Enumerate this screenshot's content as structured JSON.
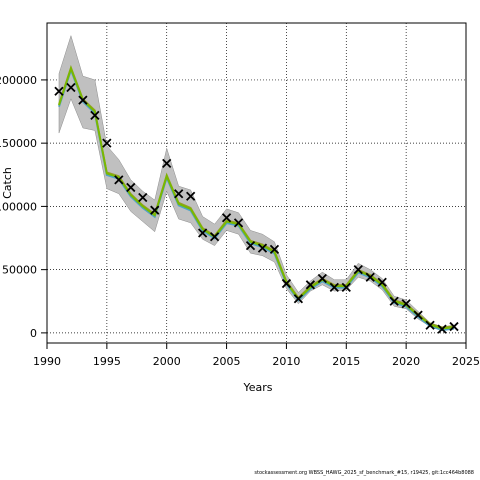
{
  "chart_data": {
    "type": "line",
    "xlabel": "Years",
    "ylabel": "Catch",
    "xlim": [
      1990,
      2025
    ],
    "ylim": [
      -8000,
      245000
    ],
    "x_ticks": [
      1990,
      1995,
      2000,
      2005,
      2010,
      2015,
      2020,
      2025
    ],
    "y_ticks": [
      0,
      50000,
      100000,
      150000,
      200000
    ],
    "grid": true,
    "colors": {
      "band": "#c0c0c0",
      "band_edge": "#777777",
      "fit_line_1": "#4fa3c7",
      "fit_line_2": "#7ab800",
      "fit_line_3": "#9a9a2e",
      "observed": "#000000"
    },
    "years": [
      1991,
      1992,
      1993,
      1994,
      1995,
      1996,
      1997,
      1998,
      1999,
      2000,
      2001,
      2002,
      2003,
      2004,
      2005,
      2006,
      2007,
      2008,
      2009,
      2010,
      2011,
      2012,
      2013,
      2014,
      2015,
      2016,
      2017,
      2018,
      2019,
      2020,
      2021,
      2022,
      2023,
      2024
    ],
    "observed": [
      191000,
      194000,
      184000,
      172000,
      150000,
      121000,
      115000,
      107000,
      97000,
      134000,
      110000,
      108000,
      79000,
      76000,
      91000,
      87000,
      69000,
      67000,
      66000,
      39000,
      27000,
      38000,
      43000,
      36000,
      36000,
      50000,
      44000,
      40000,
      25000,
      23000,
      14000,
      6000,
      3000,
      5000
    ],
    "fit": [
      180000,
      209000,
      184000,
      175000,
      126000,
      123000,
      109000,
      100000,
      93000,
      124000,
      102000,
      98000,
      82000,
      76000,
      88000,
      86000,
      72000,
      69000,
      64000,
      40000,
      27000,
      36000,
      42000,
      37000,
      37000,
      49000,
      45000,
      38000,
      25000,
      22000,
      14000,
      6500,
      3500,
      4500
    ],
    "lower": [
      158000,
      185000,
      162000,
      160000,
      114000,
      110000,
      96000,
      88000,
      80000,
      112000,
      90000,
      87000,
      74000,
      69000,
      81000,
      78000,
      63000,
      61000,
      56000,
      35000,
      23000,
      33000,
      38000,
      33000,
      34000,
      44000,
      41000,
      34000,
      21000,
      19000,
      11000,
      5000,
      2500,
      3500
    ],
    "upper": [
      205000,
      235000,
      203000,
      200000,
      148000,
      137000,
      121000,
      112000,
      105000,
      146000,
      116000,
      113000,
      92000,
      86000,
      98000,
      95000,
      81000,
      78000,
      72000,
      46000,
      32000,
      41000,
      48000,
      42000,
      42000,
      55000,
      50000,
      43000,
      29000,
      26000,
      17000,
      8000,
      4800,
      6000
    ]
  },
  "footer": {
    "source": "stockassessment.org WBSS_HAWG_2025_sf_benchmark_#15, r19425, git:1cc464b8088"
  }
}
